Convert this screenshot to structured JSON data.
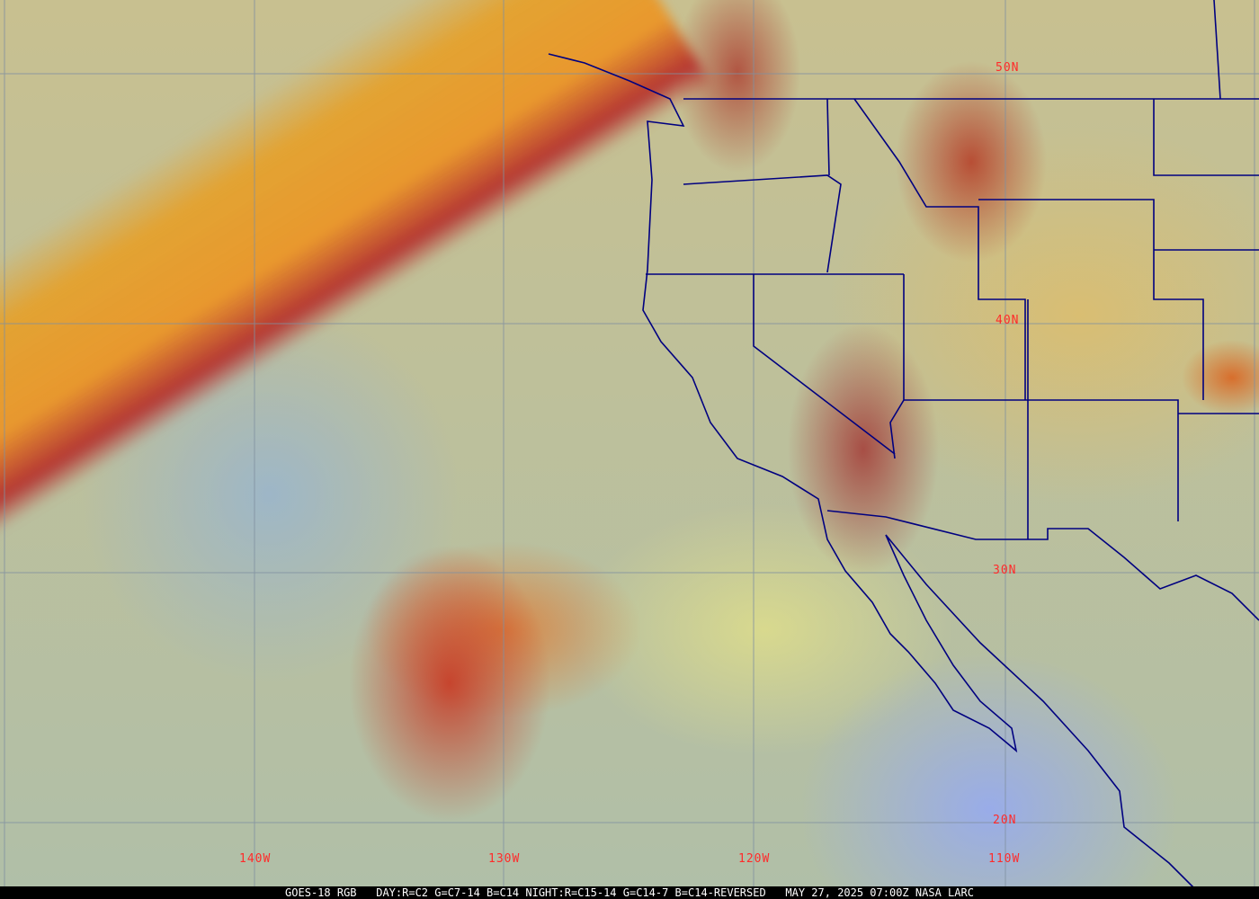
{
  "map": {
    "type": "satellite-rgb-composite",
    "region": "US West Coast and Eastern Pacific",
    "boundary_color": "#000080",
    "grid_color": "#8090a0",
    "label_color": "#ff2a2a",
    "longitude_labels": [
      "140W",
      "130W",
      "120W",
      "110W"
    ],
    "latitude_labels": [
      "50N",
      "40N",
      "30N",
      "20N"
    ]
  },
  "caption": {
    "satellite": "GOES-18 RGB",
    "recipe": "DAY:R=C2 G=C7-14 B=C14 NIGHT:R=C15-14 G=C14-7 B=C14-REVERSED",
    "timestamp": "MAY 27, 2025 07:00Z",
    "credit": "NASA LARC"
  }
}
